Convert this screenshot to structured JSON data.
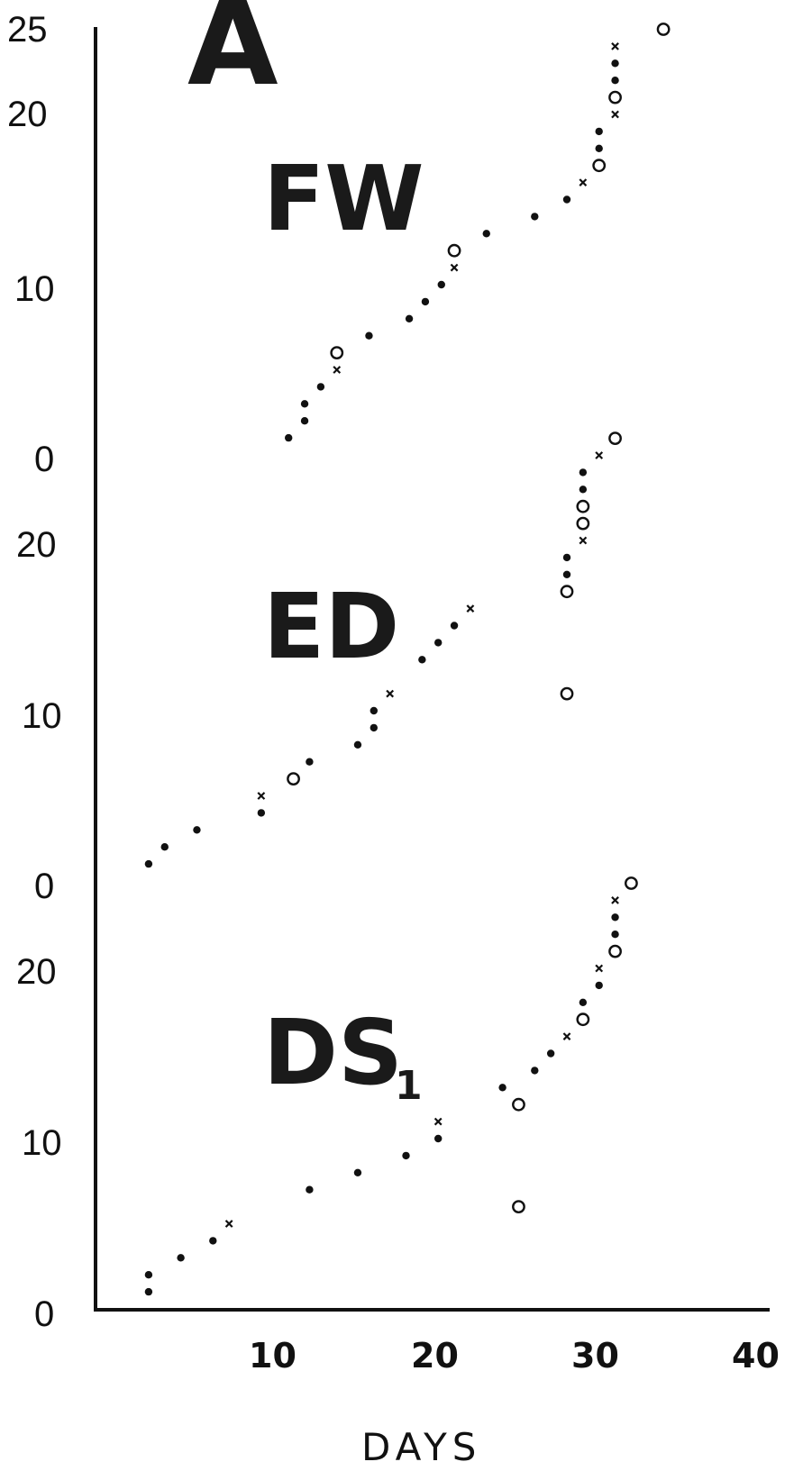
{
  "figure_letter": "A",
  "chart_data": {
    "type": "scatter",
    "xlabel": "DAYS",
    "x_ticks": [
      "10",
      "20",
      "30",
      "40"
    ],
    "xlim": [
      0,
      40
    ],
    "grid": false,
    "marker_legend": {
      "filled": "dot",
      "open": "circle",
      "cross": "x"
    },
    "panels": [
      {
        "name": "FW",
        "y_ticks": [
          "25",
          "20",
          "10",
          "0"
        ],
        "ylim": [
          0,
          25
        ],
        "points": [
          {
            "x": 12,
            "y": 1,
            "m": "filled"
          },
          {
            "x": 13,
            "y": 2,
            "m": "filled"
          },
          {
            "x": 13,
            "y": 3,
            "m": "filled"
          },
          {
            "x": 14,
            "y": 4,
            "m": "filled"
          },
          {
            "x": 15,
            "y": 5,
            "m": "cross"
          },
          {
            "x": 15,
            "y": 6,
            "m": "open"
          },
          {
            "x": 17,
            "y": 7,
            "m": "filled"
          },
          {
            "x": 19.5,
            "y": 8,
            "m": "filled"
          },
          {
            "x": 20.5,
            "y": 9,
            "m": "filled"
          },
          {
            "x": 21.5,
            "y": 10,
            "m": "filled"
          },
          {
            "x": 22.3,
            "y": 11,
            "m": "cross"
          },
          {
            "x": 22.3,
            "y": 12,
            "m": "open"
          },
          {
            "x": 24.3,
            "y": 13,
            "m": "filled"
          },
          {
            "x": 27.3,
            "y": 14,
            "m": "filled"
          },
          {
            "x": 29.3,
            "y": 15,
            "m": "filled"
          },
          {
            "x": 30.3,
            "y": 16,
            "m": "cross"
          },
          {
            "x": 31.3,
            "y": 17,
            "m": "open"
          },
          {
            "x": 31.3,
            "y": 18,
            "m": "filled"
          },
          {
            "x": 31.3,
            "y": 19,
            "m": "filled"
          },
          {
            "x": 32.3,
            "y": 20,
            "m": "cross"
          },
          {
            "x": 32.3,
            "y": 21,
            "m": "open"
          },
          {
            "x": 32.3,
            "y": 22,
            "m": "filled"
          },
          {
            "x": 32.3,
            "y": 23,
            "m": "filled"
          },
          {
            "x": 32.3,
            "y": 24,
            "m": "cross"
          },
          {
            "x": 35.3,
            "y": 25,
            "m": "open"
          }
        ]
      },
      {
        "name": "ED",
        "y_ticks": [
          "20",
          "10",
          "0"
        ],
        "ylim": [
          0,
          25
        ],
        "points": [
          {
            "x": 3.3,
            "y": 1,
            "m": "filled"
          },
          {
            "x": 4.3,
            "y": 2,
            "m": "filled"
          },
          {
            "x": 6.3,
            "y": 3,
            "m": "filled"
          },
          {
            "x": 10.3,
            "y": 4,
            "m": "filled"
          },
          {
            "x": 10.3,
            "y": 5,
            "m": "cross"
          },
          {
            "x": 12.3,
            "y": 6,
            "m": "open"
          },
          {
            "x": 13.3,
            "y": 7,
            "m": "filled"
          },
          {
            "x": 16.3,
            "y": 8,
            "m": "filled"
          },
          {
            "x": 17.3,
            "y": 9,
            "m": "filled"
          },
          {
            "x": 17.3,
            "y": 10,
            "m": "filled"
          },
          {
            "x": 18.3,
            "y": 11,
            "m": "cross"
          },
          {
            "x": 29.3,
            "y": 11,
            "m": "open"
          },
          {
            "x": 20.3,
            "y": 13,
            "m": "filled"
          },
          {
            "x": 21.3,
            "y": 14,
            "m": "filled"
          },
          {
            "x": 22.3,
            "y": 15,
            "m": "filled"
          },
          {
            "x": 23.3,
            "y": 16,
            "m": "cross"
          },
          {
            "x": 29.3,
            "y": 17,
            "m": "open"
          },
          {
            "x": 29.3,
            "y": 18,
            "m": "filled"
          },
          {
            "x": 29.3,
            "y": 19,
            "m": "filled"
          },
          {
            "x": 30.3,
            "y": 20,
            "m": "cross"
          },
          {
            "x": 30.3,
            "y": 21,
            "m": "open"
          },
          {
            "x": 30.3,
            "y": 22,
            "m": "open"
          },
          {
            "x": 30.3,
            "y": 23,
            "m": "filled"
          },
          {
            "x": 30.3,
            "y": 24,
            "m": "filled"
          },
          {
            "x": 31.3,
            "y": 25,
            "m": "cross"
          },
          {
            "x": 32.3,
            "y": 26,
            "m": "open"
          }
        ]
      },
      {
        "name": "DS",
        "name_subscript": "1",
        "y_ticks": [
          "20",
          "10",
          "0"
        ],
        "ylim": [
          0,
          25
        ],
        "points": [
          {
            "x": 3.3,
            "y": 1,
            "m": "filled"
          },
          {
            "x": 3.3,
            "y": 2,
            "m": "filled"
          },
          {
            "x": 5.3,
            "y": 3,
            "m": "filled"
          },
          {
            "x": 7.3,
            "y": 4,
            "m": "filled"
          },
          {
            "x": 8.3,
            "y": 5,
            "m": "cross"
          },
          {
            "x": 26.3,
            "y": 6,
            "m": "open"
          },
          {
            "x": 13.3,
            "y": 7,
            "m": "filled"
          },
          {
            "x": 16.3,
            "y": 8,
            "m": "filled"
          },
          {
            "x": 19.3,
            "y": 9,
            "m": "filled"
          },
          {
            "x": 21.3,
            "y": 10,
            "m": "filled"
          },
          {
            "x": 21.3,
            "y": 11,
            "m": "cross"
          },
          {
            "x": 26.3,
            "y": 12,
            "m": "open"
          },
          {
            "x": 25.3,
            "y": 13,
            "m": "filled"
          },
          {
            "x": 27.3,
            "y": 14,
            "m": "filled"
          },
          {
            "x": 28.3,
            "y": 15,
            "m": "filled"
          },
          {
            "x": 29.3,
            "y": 16,
            "m": "cross"
          },
          {
            "x": 30.3,
            "y": 17,
            "m": "open"
          },
          {
            "x": 30.3,
            "y": 18,
            "m": "filled"
          },
          {
            "x": 31.3,
            "y": 19,
            "m": "filled"
          },
          {
            "x": 31.3,
            "y": 20,
            "m": "cross"
          },
          {
            "x": 32.3,
            "y": 21,
            "m": "open"
          },
          {
            "x": 32.3,
            "y": 22,
            "m": "filled"
          },
          {
            "x": 32.3,
            "y": 23,
            "m": "filled"
          },
          {
            "x": 32.3,
            "y": 24,
            "m": "cross"
          },
          {
            "x": 33.3,
            "y": 25,
            "m": "open"
          }
        ]
      }
    ]
  }
}
